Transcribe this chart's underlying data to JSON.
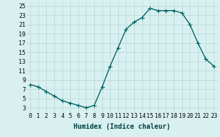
{
  "x": [
    0,
    1,
    2,
    3,
    4,
    5,
    6,
    7,
    8,
    9,
    10,
    11,
    12,
    13,
    14,
    15,
    16,
    17,
    18,
    19,
    20,
    21,
    22,
    23
  ],
  "y": [
    8,
    7.5,
    6.5,
    5.5,
    4.5,
    4,
    3.5,
    3,
    3.5,
    7.5,
    12,
    16,
    20,
    21.5,
    22.5,
    24.5,
    24,
    24,
    24,
    23.5,
    21,
    17,
    13.5,
    12
  ],
  "line_color": "#006060",
  "marker": "+",
  "marker_size": 4,
  "marker_color": "#006060",
  "bg_color": "#d8f0f0",
  "grid_color": "#b8d4d4",
  "xlabel": "Humidex (Indice chaleur)",
  "xlabel_fontsize": 7,
  "xlim": [
    -0.5,
    23.5
  ],
  "ylim": [
    2,
    26
  ],
  "yticks": [
    3,
    5,
    7,
    9,
    11,
    13,
    15,
    17,
    19,
    21,
    23,
    25
  ],
  "xticks": [
    0,
    1,
    2,
    3,
    4,
    5,
    6,
    7,
    8,
    9,
    10,
    11,
    12,
    13,
    14,
    15,
    16,
    17,
    18,
    19,
    20,
    21,
    22,
    23
  ],
  "tick_fontsize": 6,
  "line_width": 1.0
}
